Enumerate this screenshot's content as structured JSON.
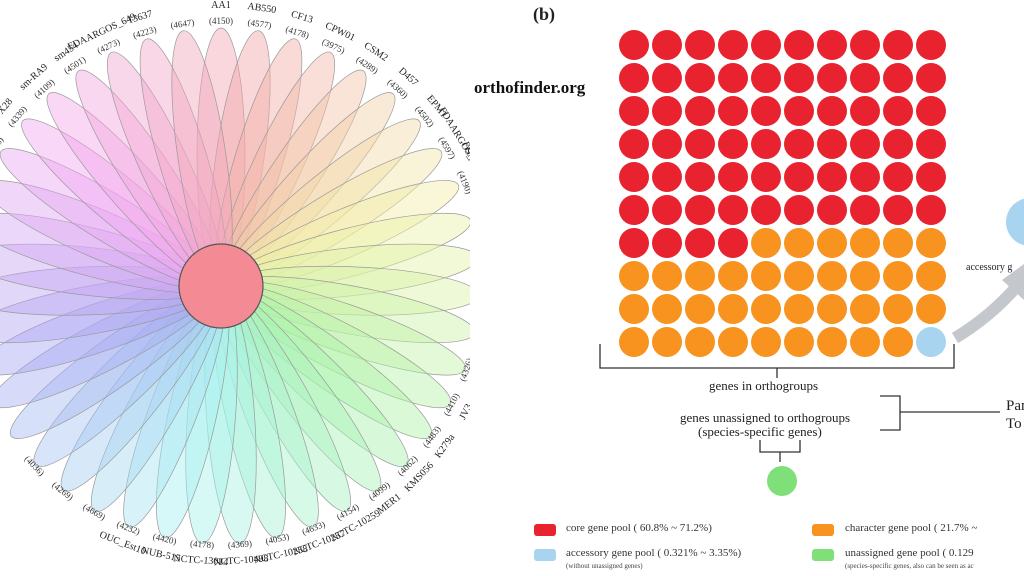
{
  "panel_b_label": "(b)",
  "watermark": "orthofinder.org",
  "flower": {
    "strains": [
      {
        "name": "AA1",
        "count": "(4150)"
      },
      {
        "name": "AB550",
        "count": "(4577)"
      },
      {
        "name": "CF13",
        "count": "(4178)"
      },
      {
        "name": "CPW01",
        "count": "(3975)"
      },
      {
        "name": "CSM2",
        "count": "(4289)"
      },
      {
        "name": "D457",
        "count": "(4360)"
      },
      {
        "name": "EPM1",
        "count": "(4502)"
      },
      {
        "name": "FDAARGOS_440",
        "count": "(4597)"
      },
      {
        "name": "FDAARGOS_441",
        "count": "(4190)"
      },
      {
        "name": "FDAARGOS_442",
        "count": "(4436)"
      },
      {
        "name": "ECU331",
        "count": "(4651)"
      },
      {
        "name": "",
        "count": "(4408)"
      },
      {
        "name": "",
        "count": "(4505)"
      },
      {
        "name": "",
        "count": "(4326)"
      },
      {
        "name": "JV3",
        "count": "(4410)"
      },
      {
        "name": "K279a",
        "count": "(4483)"
      },
      {
        "name": "KMS056",
        "count": "(4062)"
      },
      {
        "name": "MER1",
        "count": "(4099)"
      },
      {
        "name": "NCTC-10259",
        "count": "(4154)"
      },
      {
        "name": "NCTC-10257",
        "count": "(4633)"
      },
      {
        "name": "NCTC-10258",
        "count": "(4053)"
      },
      {
        "name": "NCTC-10498",
        "count": "(4369)"
      },
      {
        "name": "NCTC-13014",
        "count": "(4178)"
      },
      {
        "name": "NUB-515",
        "count": "(4420)"
      },
      {
        "name": "OUC_Est10",
        "count": "(4232)"
      },
      {
        "name": "",
        "count": "(4669)"
      },
      {
        "name": "",
        "count": "(4269)"
      },
      {
        "name": "",
        "count": "(4036)"
      },
      {
        "name": "",
        "count": ""
      },
      {
        "name": "",
        "count": ""
      },
      {
        "name": "",
        "count": ""
      },
      {
        "name": "",
        "count": ""
      },
      {
        "name": "",
        "count": ""
      },
      {
        "name": "",
        "count": ""
      },
      {
        "name": "",
        "count": ""
      },
      {
        "name": "U5",
        "count": "(4273)"
      },
      {
        "name": "W18",
        "count": "(4096)"
      },
      {
        "name": "X28",
        "count": "(4339)"
      },
      {
        "name": "sm-RA9",
        "count": "(4109)"
      },
      {
        "name": "sm454",
        "count": "(4501)"
      },
      {
        "name": "FDAARGOS_649",
        "count": "(4273)"
      },
      {
        "name": "13637",
        "count": "(4223)"
      },
      {
        "name": "",
        "count": "(4647)"
      }
    ]
  },
  "grid": {
    "total": 100,
    "core_count": 64,
    "character_count": 35,
    "accessory_count": 1
  },
  "colors": {
    "core": "#e8232f",
    "character": "#f7931e",
    "accessory": "#a8d4f0",
    "unassigned": "#7fe07a",
    "center": "#f48a93"
  },
  "labels": {
    "genes_in_orthogroups": "genes in orthogroups",
    "genes_unassigned_line1": "genes unassigned to orthogroups",
    "genes_unassigned_line2": "(species-specific genes)",
    "accessory_side": "accessory g",
    "pan_partial": "Pan",
    "total_partial": "To"
  },
  "legend": {
    "core": "core gene pool ( 60.8% ~ 71.2%)",
    "accessory": "accessory gene pool ( 0.321% ~ 3.35%)",
    "accessory_sub": "(without unassigned genes)",
    "character": "character gene pool ( 21.7% ~",
    "unassigned": "unassigned gene pool ( 0.129",
    "unassigned_sub": "(species-specific genes, also can be seen as ac"
  }
}
